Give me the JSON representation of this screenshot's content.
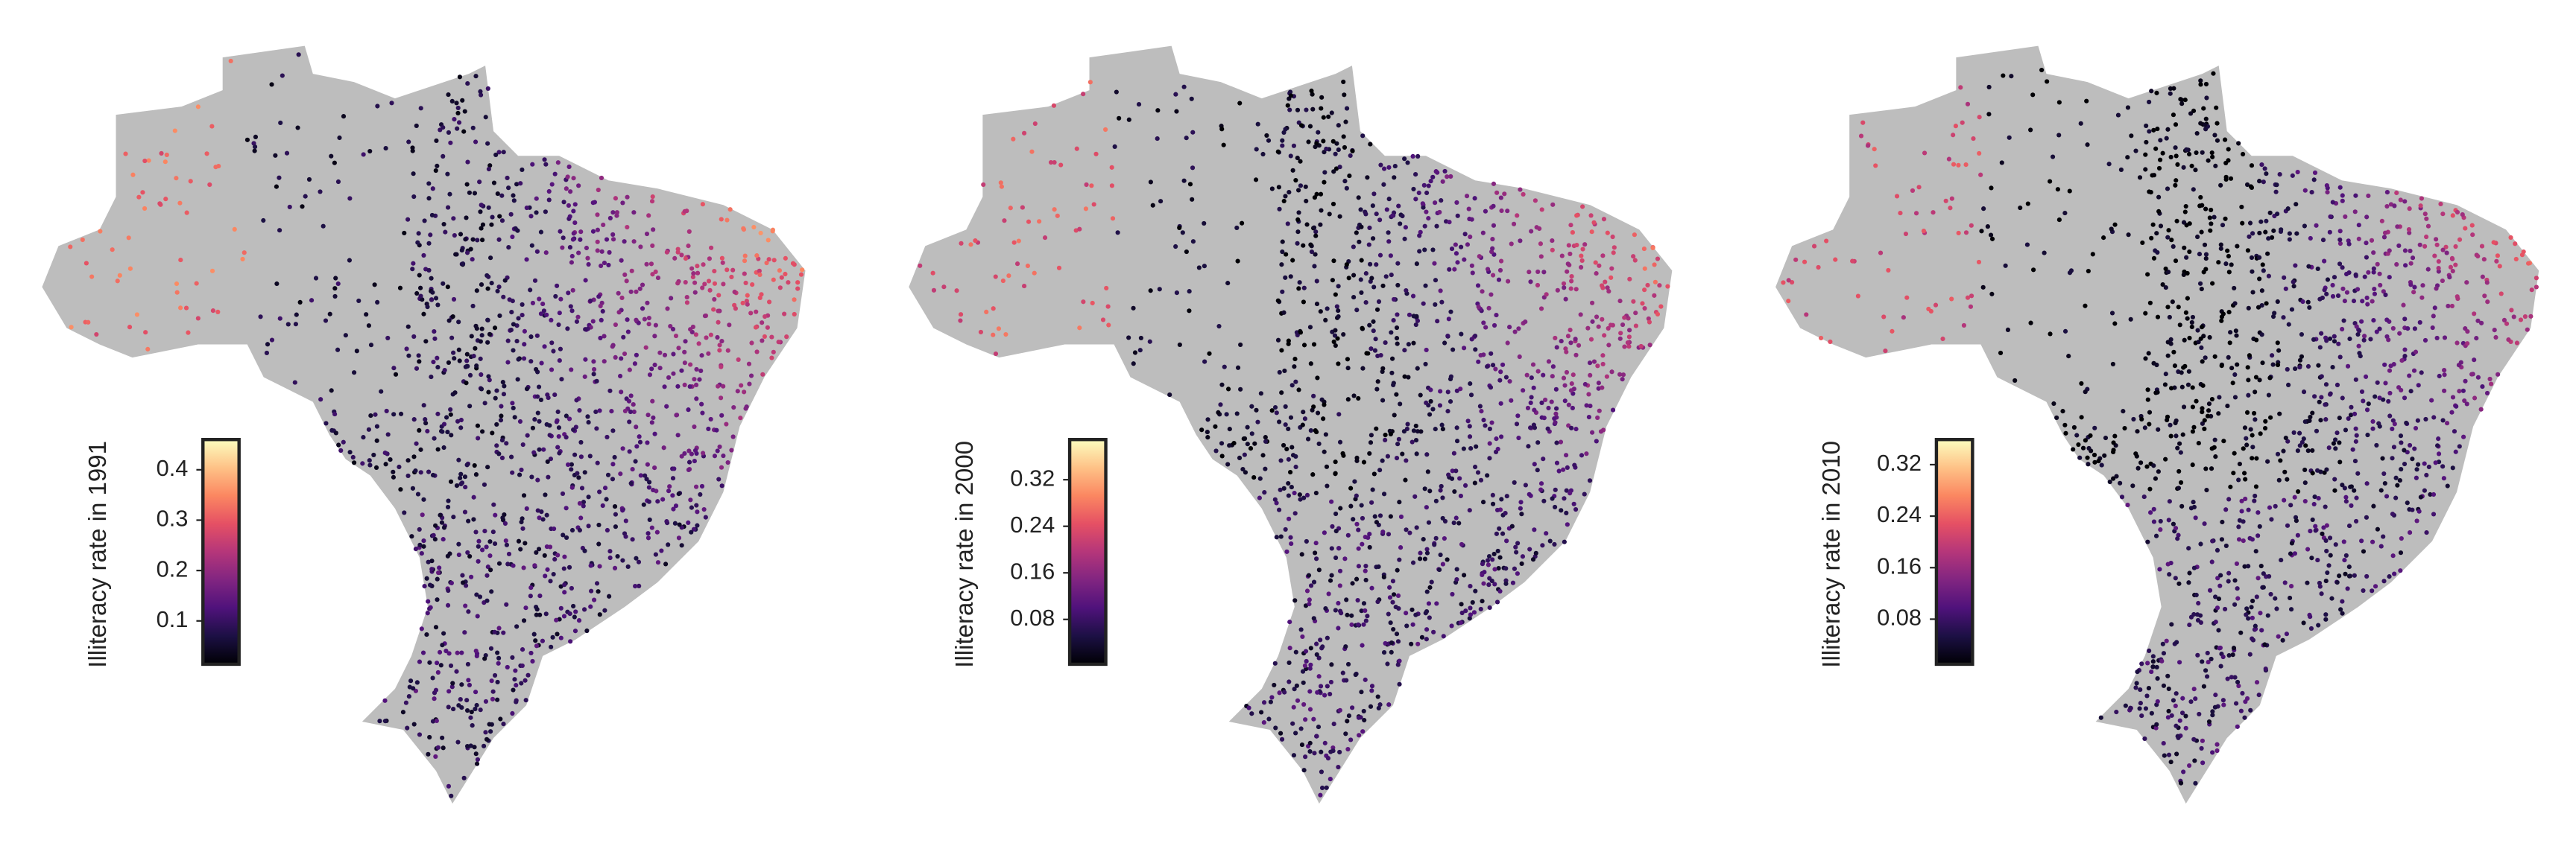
{
  "chart_data": [
    {
      "type": "map",
      "colorbar_label": "Illiteracy rate in 1991",
      "colormap": "magma",
      "clim": [
        0.014,
        0.46
      ],
      "cticks": [
        0.1,
        0.2,
        0.3,
        0.4
      ]
    },
    {
      "type": "map",
      "colorbar_label": "Illiteracy rate in 2000",
      "colormap": "magma",
      "clim": [
        0.003,
        0.389
      ],
      "cticks": [
        0.08,
        0.16,
        0.24,
        0.32
      ]
    },
    {
      "type": "map",
      "colorbar_label": "Illiteracy rate in 2010",
      "colormap": "magma",
      "clim": [
        0.01,
        0.359
      ],
      "cticks": [
        0.08,
        0.16,
        0.24,
        0.32
      ]
    }
  ]
}
